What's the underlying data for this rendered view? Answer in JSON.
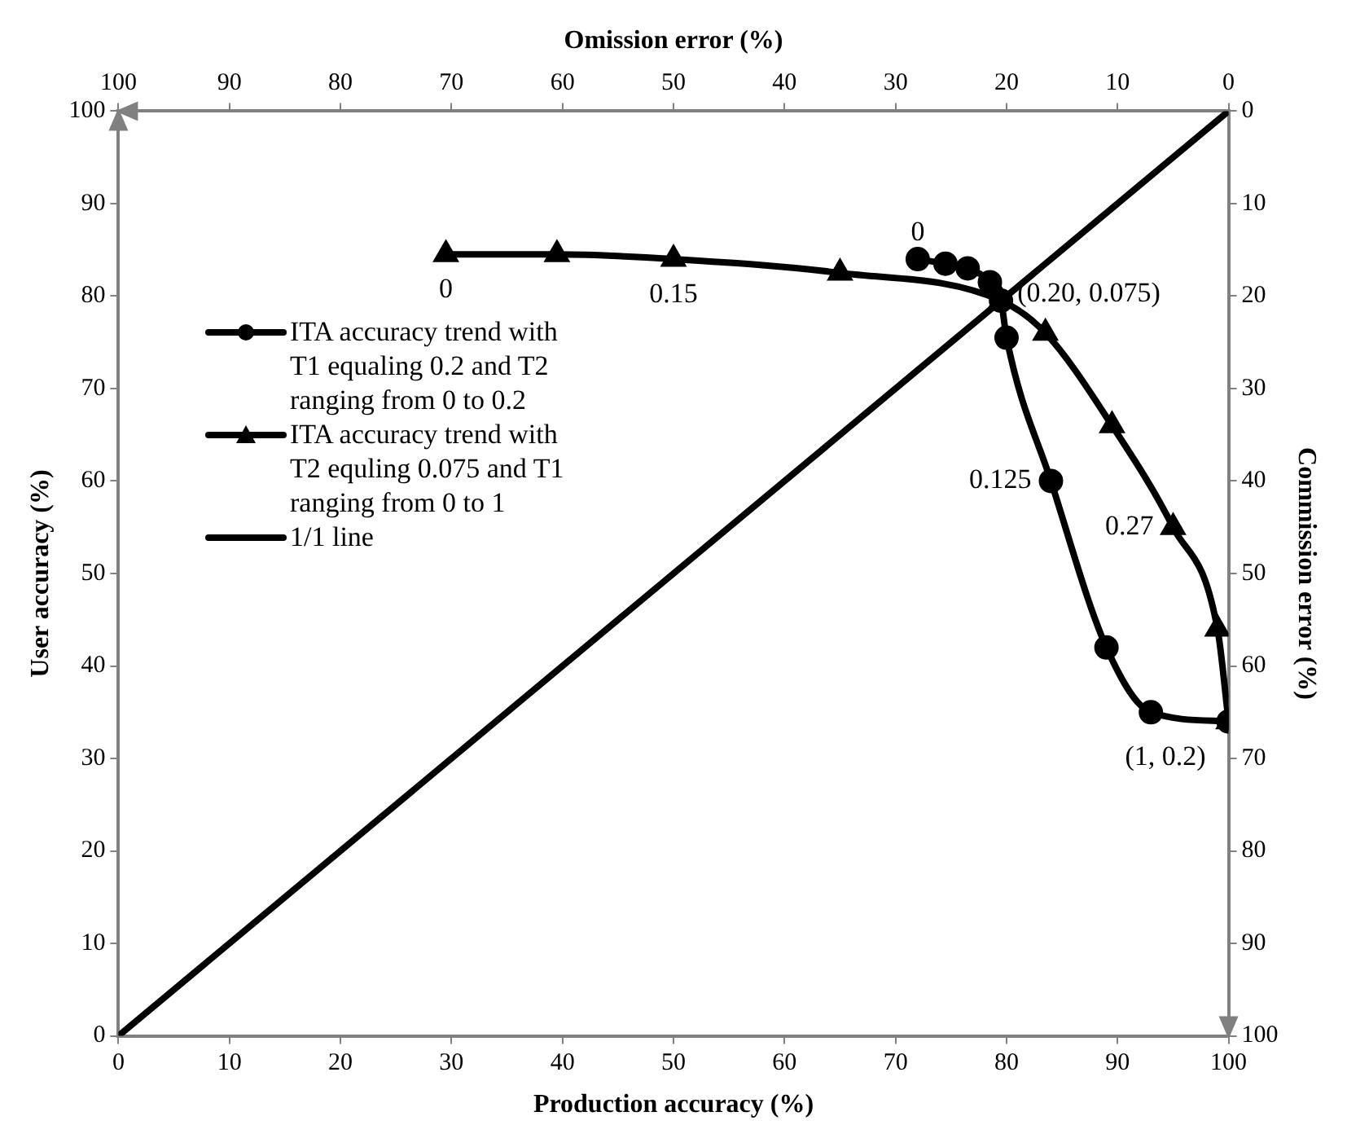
{
  "chart_data": {
    "type": "line",
    "xlabel": "Production accuracy (%)",
    "ylabel": "User accuracy (%)",
    "x2label": "Omission error (%)",
    "y2label": "Commission error (%)",
    "xlim": [
      0,
      100
    ],
    "xticks": [
      0,
      10,
      20,
      30,
      40,
      50,
      60,
      70,
      80,
      90,
      100
    ],
    "ylim": [
      0,
      100
    ],
    "yticks": [
      0,
      10,
      20,
      30,
      40,
      50,
      60,
      70,
      80,
      90,
      100
    ],
    "x2lim": [
      100,
      0
    ],
    "x2ticks": [
      100,
      90,
      80,
      70,
      60,
      50,
      40,
      30,
      20,
      10,
      0
    ],
    "y2lim": [
      100,
      0
    ],
    "y2ticks": [
      0,
      10,
      20,
      30,
      40,
      50,
      60,
      70,
      80,
      90,
      100
    ],
    "grid": false,
    "legend": "left",
    "series": [
      {
        "name": "ITA accuracy trend with T1 equaling 0.2 and T2 ranging from 0 to 0.2",
        "color": "#000000",
        "marker": "circle",
        "x": [
          72,
          74.5,
          76.5,
          78.5,
          79.5,
          80,
          84,
          89,
          93,
          100
        ],
        "values": [
          84,
          83.5,
          83,
          81.5,
          79.5,
          75.5,
          60,
          42,
          35,
          34
        ]
      },
      {
        "name": "ITA accuracy trend with T2 equling 0.075 and T1 ranging from 0 to 1",
        "color": "#000000",
        "marker": "triangle",
        "x": [
          29.5,
          39.5,
          50,
          65,
          79.5,
          83.5,
          89.5,
          95,
          99,
          100
        ],
        "values": [
          84.5,
          84.5,
          84,
          82.5,
          79.5,
          76,
          66,
          55,
          44,
          34
        ]
      },
      {
        "name": "1/1 line",
        "color": "#000000",
        "marker": "none",
        "x": [
          0,
          100
        ],
        "values": [
          0,
          100
        ]
      }
    ],
    "annotations": [
      {
        "text": "0",
        "x": 72,
        "y": 84
      },
      {
        "text": "0.125",
        "x": 84,
        "y": 60
      },
      {
        "text": "0",
        "x": 29.5,
        "y": 84.5
      },
      {
        "text": "0.15",
        "x": 50,
        "y": 84
      },
      {
        "text": "(0.20, 0.075)",
        "x": 79.5,
        "y": 79.5
      },
      {
        "text": "0.27",
        "x": 95,
        "y": 55
      },
      {
        "text": "(1, 0.2)",
        "x": 100,
        "y": 34
      }
    ]
  }
}
